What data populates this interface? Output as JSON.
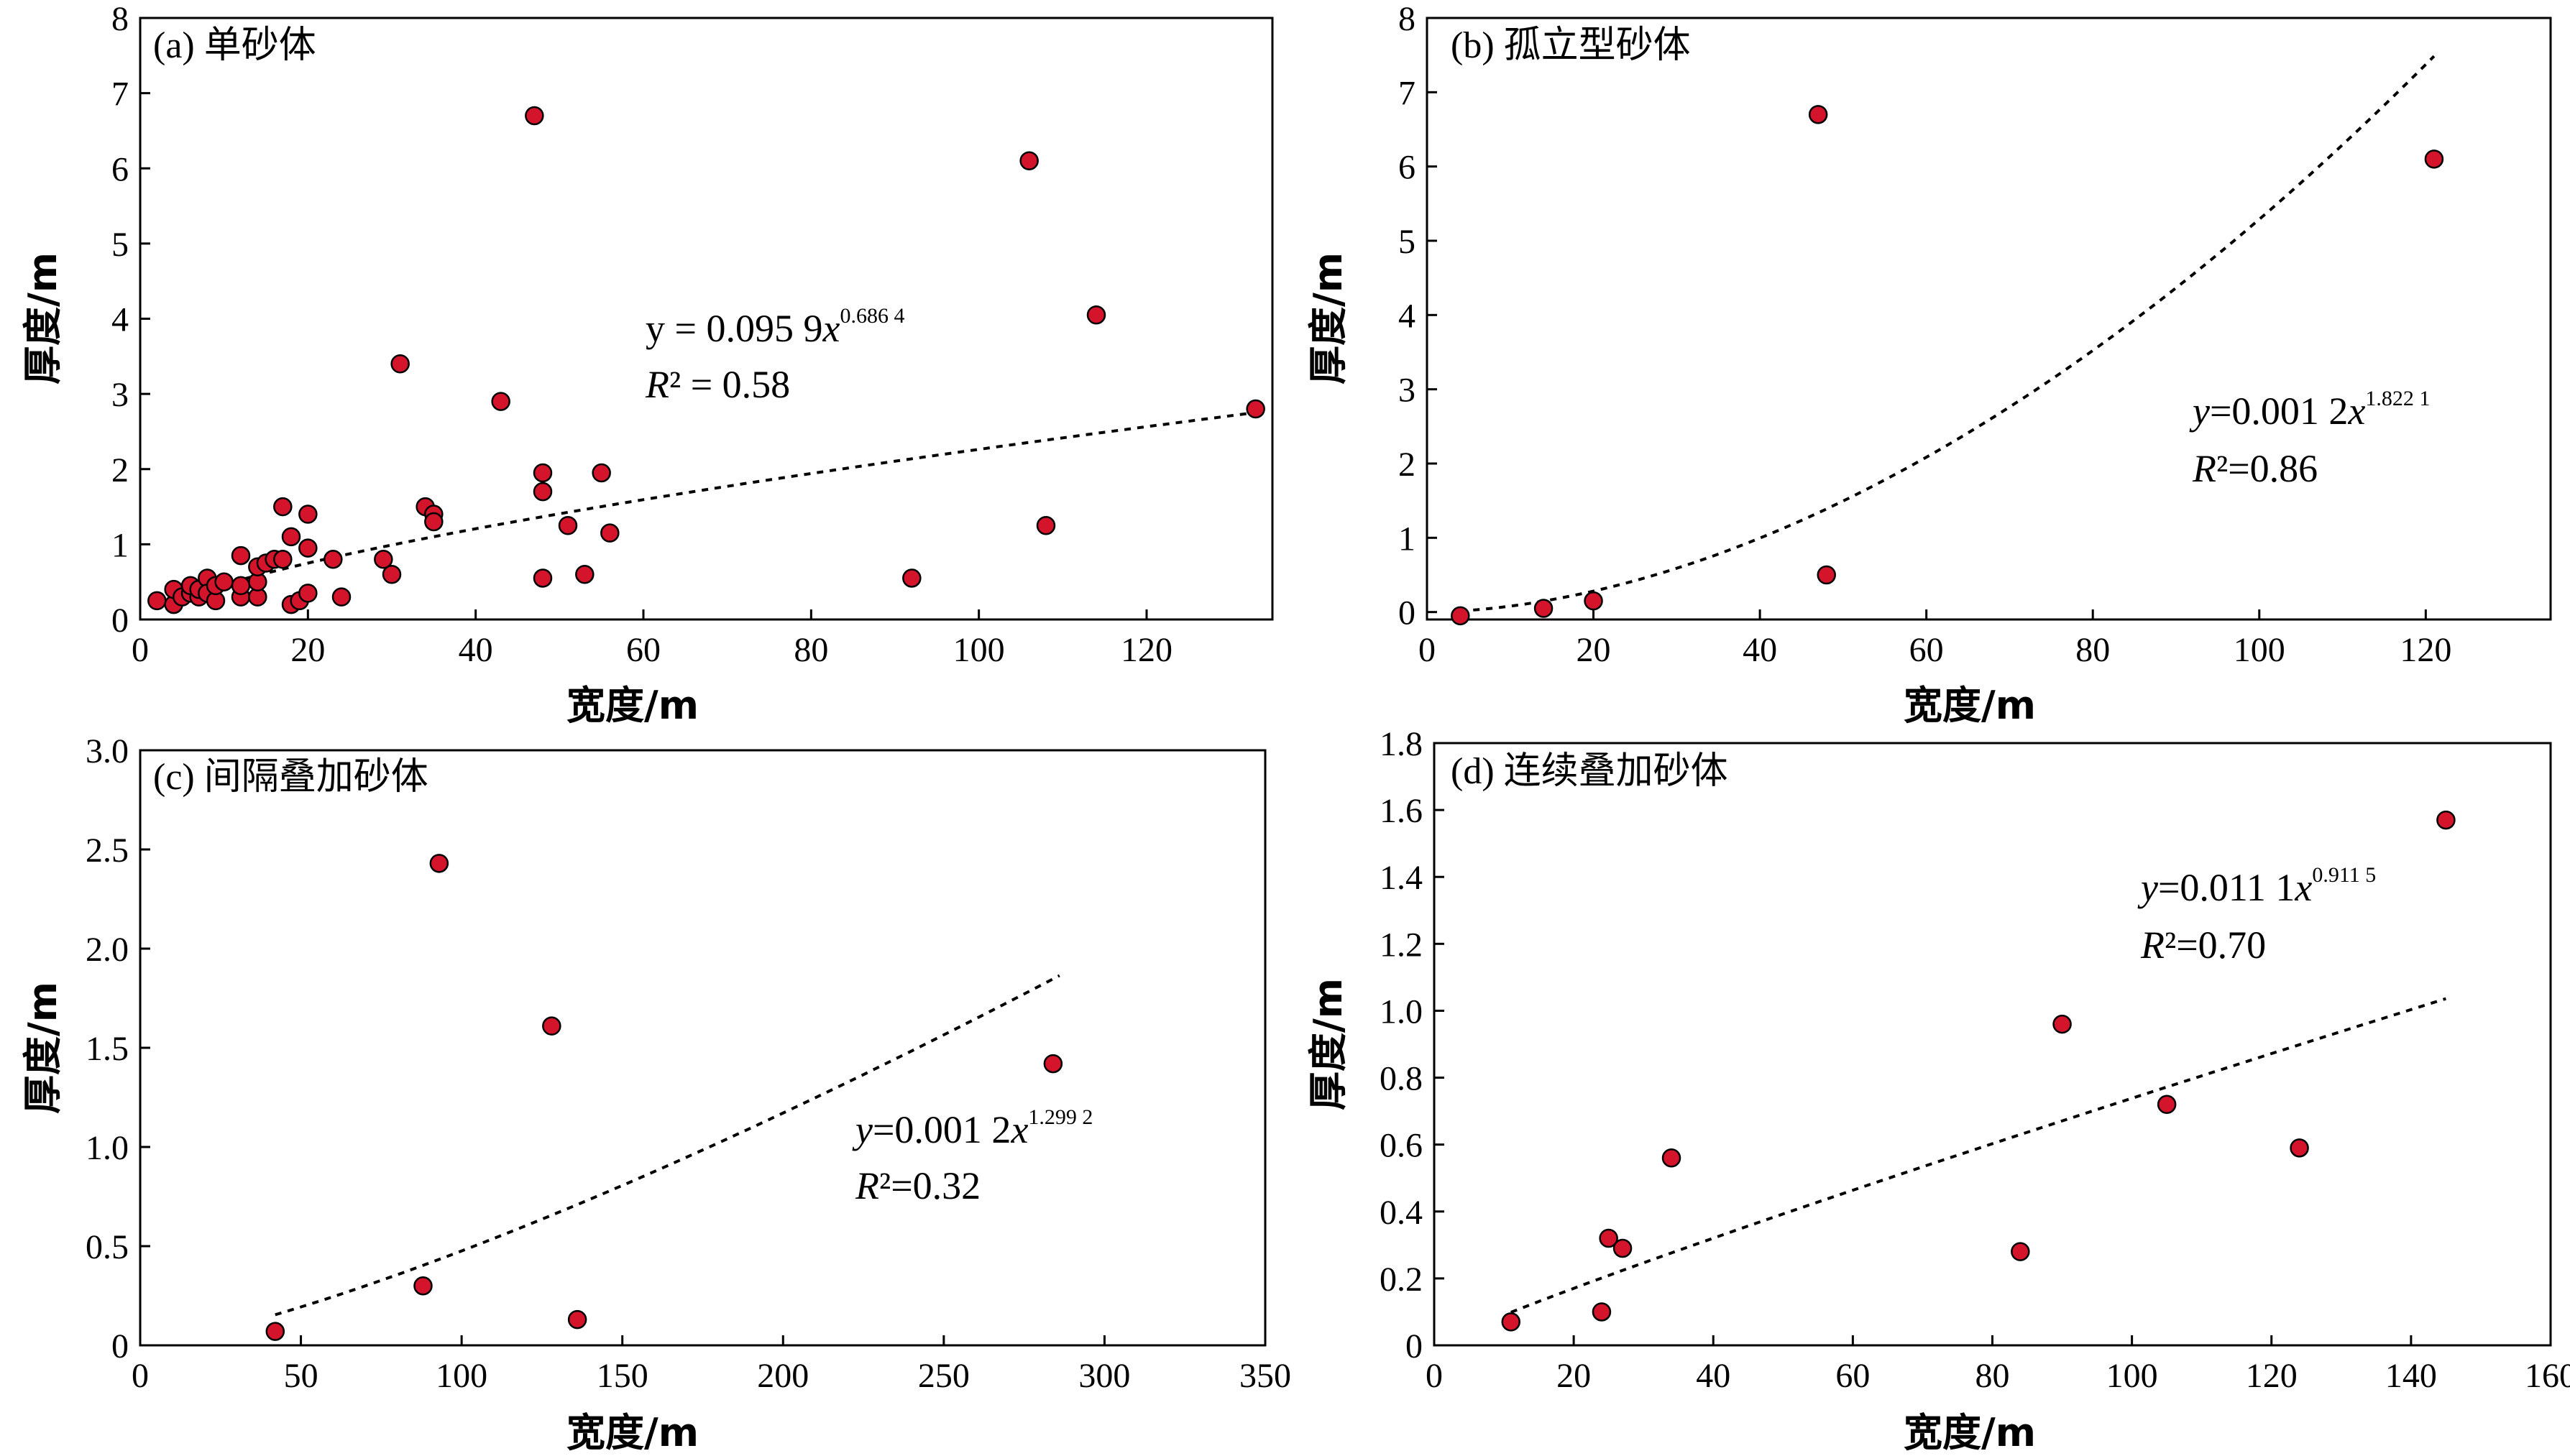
{
  "chart_data": [
    {
      "type": "scatter",
      "title": "(a) 单砂体",
      "xlabel": "宽度/m",
      "ylabel": "厚度/m",
      "xlim": [
        0,
        135
      ],
      "ylim": [
        0,
        8
      ],
      "xticks": [
        0,
        20,
        40,
        60,
        80,
        100,
        120
      ],
      "yticks": [
        0,
        1,
        2,
        3,
        4,
        5,
        6,
        7,
        8
      ],
      "tick_labels_x": [
        "0",
        "20",
        "40",
        "60",
        "80",
        "100",
        "120"
      ],
      "tick_labels_y": [
        "0",
        "1",
        "2",
        "3",
        "4",
        "5",
        "6",
        "7",
        "8"
      ],
      "grid": false,
      "fit": {
        "type": "power",
        "a": 0.0959,
        "b": 0.6864,
        "x_range": [
          8,
          133
        ],
        "equation_prefix": "y = 0.095 9",
        "equation_var": "x",
        "exponent": "0.686 4",
        "r2_label": "R² = 0.58"
      },
      "points": [
        [
          2,
          0.25
        ],
        [
          4,
          0.2
        ],
        [
          4,
          0.4
        ],
        [
          5,
          0.3
        ],
        [
          6,
          0.35
        ],
        [
          6,
          0.45
        ],
        [
          7,
          0.3
        ],
        [
          7,
          0.4
        ],
        [
          8,
          0.55
        ],
        [
          8,
          0.35
        ],
        [
          9,
          0.25
        ],
        [
          9,
          0.45
        ],
        [
          10,
          0.5
        ],
        [
          12,
          0.3
        ],
        [
          12,
          0.85
        ],
        [
          12,
          0.45
        ],
        [
          14,
          0.3
        ],
        [
          14,
          0.5
        ],
        [
          14,
          0.7
        ],
        [
          15,
          0.75
        ],
        [
          16,
          0.8
        ],
        [
          17,
          1.5
        ],
        [
          17,
          0.8
        ],
        [
          18,
          1.1
        ],
        [
          18,
          0.2
        ],
        [
          19,
          0.25
        ],
        [
          20,
          1.4
        ],
        [
          20,
          0.95
        ],
        [
          20,
          0.35
        ],
        [
          23,
          0.8
        ],
        [
          24,
          0.3
        ],
        [
          29,
          0.8
        ],
        [
          30,
          0.6
        ],
        [
          31,
          3.4
        ],
        [
          34,
          1.5
        ],
        [
          35,
          1.4
        ],
        [
          35,
          1.3
        ],
        [
          43,
          2.9
        ],
        [
          47,
          6.7
        ],
        [
          48,
          1.95
        ],
        [
          48,
          1.7
        ],
        [
          48,
          0.55
        ],
        [
          51,
          1.25
        ],
        [
          53,
          0.6
        ],
        [
          55,
          1.95
        ],
        [
          56,
          1.15
        ],
        [
          92,
          0.55
        ],
        [
          106,
          6.1
        ],
        [
          108,
          1.25
        ],
        [
          114,
          4.05
        ],
        [
          133,
          2.8
        ]
      ]
    },
    {
      "type": "scatter",
      "title": "(b) 孤立型砂体",
      "xlabel": "宽度/m",
      "ylabel": "厚度/m",
      "xlim": [
        0,
        135
      ],
      "ylim": [
        -0.1,
        8
      ],
      "xticks": [
        0,
        20,
        40,
        60,
        80,
        100,
        120
      ],
      "yticks": [
        0,
        1,
        2,
        3,
        4,
        5,
        6,
        7,
        8
      ],
      "tick_labels_x": [
        "0",
        "20",
        "40",
        "60",
        "80",
        "100",
        "120"
      ],
      "tick_labels_y": [
        "0",
        "1",
        "2",
        "3",
        "4",
        "5",
        "6",
        "7",
        "8"
      ],
      "grid": false,
      "fit": {
        "type": "power",
        "a": 0.0012,
        "b": 1.8221,
        "x_range": [
          4,
          121
        ],
        "equation_prefix": "y",
        "equation_var": "x",
        "equation_value": "=0.001 2",
        "exponent": "1.822 1",
        "r2_label": "R²=0.86"
      },
      "points": [
        [
          4,
          -0.05
        ],
        [
          14,
          0.05
        ],
        [
          20,
          0.15
        ],
        [
          47,
          6.7
        ],
        [
          48,
          0.5
        ],
        [
          121,
          6.1
        ]
      ]
    },
    {
      "type": "scatter",
      "title": "(c) 间隔叠加砂体",
      "xlabel": "宽度/m",
      "ylabel": "厚度/m",
      "xlim": [
        0,
        350
      ],
      "ylim": [
        0,
        3.0
      ],
      "xticks": [
        0,
        50,
        100,
        150,
        200,
        250,
        300,
        350
      ],
      "yticks": [
        0,
        0.5,
        1.0,
        1.5,
        2.0,
        2.5,
        3.0
      ],
      "tick_labels_x": [
        "0",
        "50",
        "100",
        "150",
        "200",
        "250",
        "300",
        "350"
      ],
      "tick_labels_y": [
        "0",
        "0.5",
        "1.0",
        "1.5",
        "2.0",
        "2.5",
        "3.0"
      ],
      "grid": false,
      "fit": {
        "type": "power",
        "a": 0.0012,
        "b": 1.2992,
        "x_range": [
          42,
          286
        ],
        "equation_prefix": "y",
        "equation_var": "x",
        "equation_value": "=0.001 2",
        "exponent": "1.299 2",
        "r2_label": "R²=0.32"
      },
      "points": [
        [
          42,
          0.07
        ],
        [
          88,
          0.3
        ],
        [
          93,
          2.43
        ],
        [
          128,
          1.61
        ],
        [
          136,
          0.13
        ],
        [
          284,
          1.42
        ]
      ]
    },
    {
      "type": "scatter",
      "title": "(d) 连续叠加砂体",
      "xlabel": "宽度/m",
      "ylabel": "厚度/m",
      "xlim": [
        0,
        160
      ],
      "ylim": [
        0,
        1.8
      ],
      "xticks": [
        0,
        20,
        40,
        60,
        80,
        100,
        120,
        140,
        160
      ],
      "yticks": [
        0,
        0.2,
        0.4,
        0.6,
        0.8,
        1.0,
        1.2,
        1.4,
        1.6,
        1.8
      ],
      "tick_labels_x": [
        "0",
        "20",
        "40",
        "60",
        "80",
        "100",
        "120",
        "140",
        "160"
      ],
      "tick_labels_y": [
        "0",
        "0.2",
        "0.4",
        "0.6",
        "0.8",
        "1.0",
        "1.2",
        "1.4",
        "1.6",
        "1.8"
      ],
      "grid": false,
      "fit": {
        "type": "power",
        "a": 0.0111,
        "b": 0.9115,
        "x_range": [
          11,
          145
        ],
        "equation_prefix": "y",
        "equation_var": "x",
        "equation_value": "=0.011 1",
        "exponent": "0.911 5",
        "r2_label": "R²=0.70"
      },
      "points": [
        [
          11,
          0.07
        ],
        [
          24,
          0.1
        ],
        [
          25,
          0.32
        ],
        [
          27,
          0.29
        ],
        [
          34,
          0.56
        ],
        [
          84,
          0.28
        ],
        [
          90,
          0.96
        ],
        [
          105,
          0.72
        ],
        [
          124,
          0.59
        ],
        [
          145,
          1.57
        ]
      ]
    }
  ],
  "colors": {
    "point_fill": "#d4142a",
    "point_stroke": "#000000",
    "fit_line": "#000000"
  }
}
